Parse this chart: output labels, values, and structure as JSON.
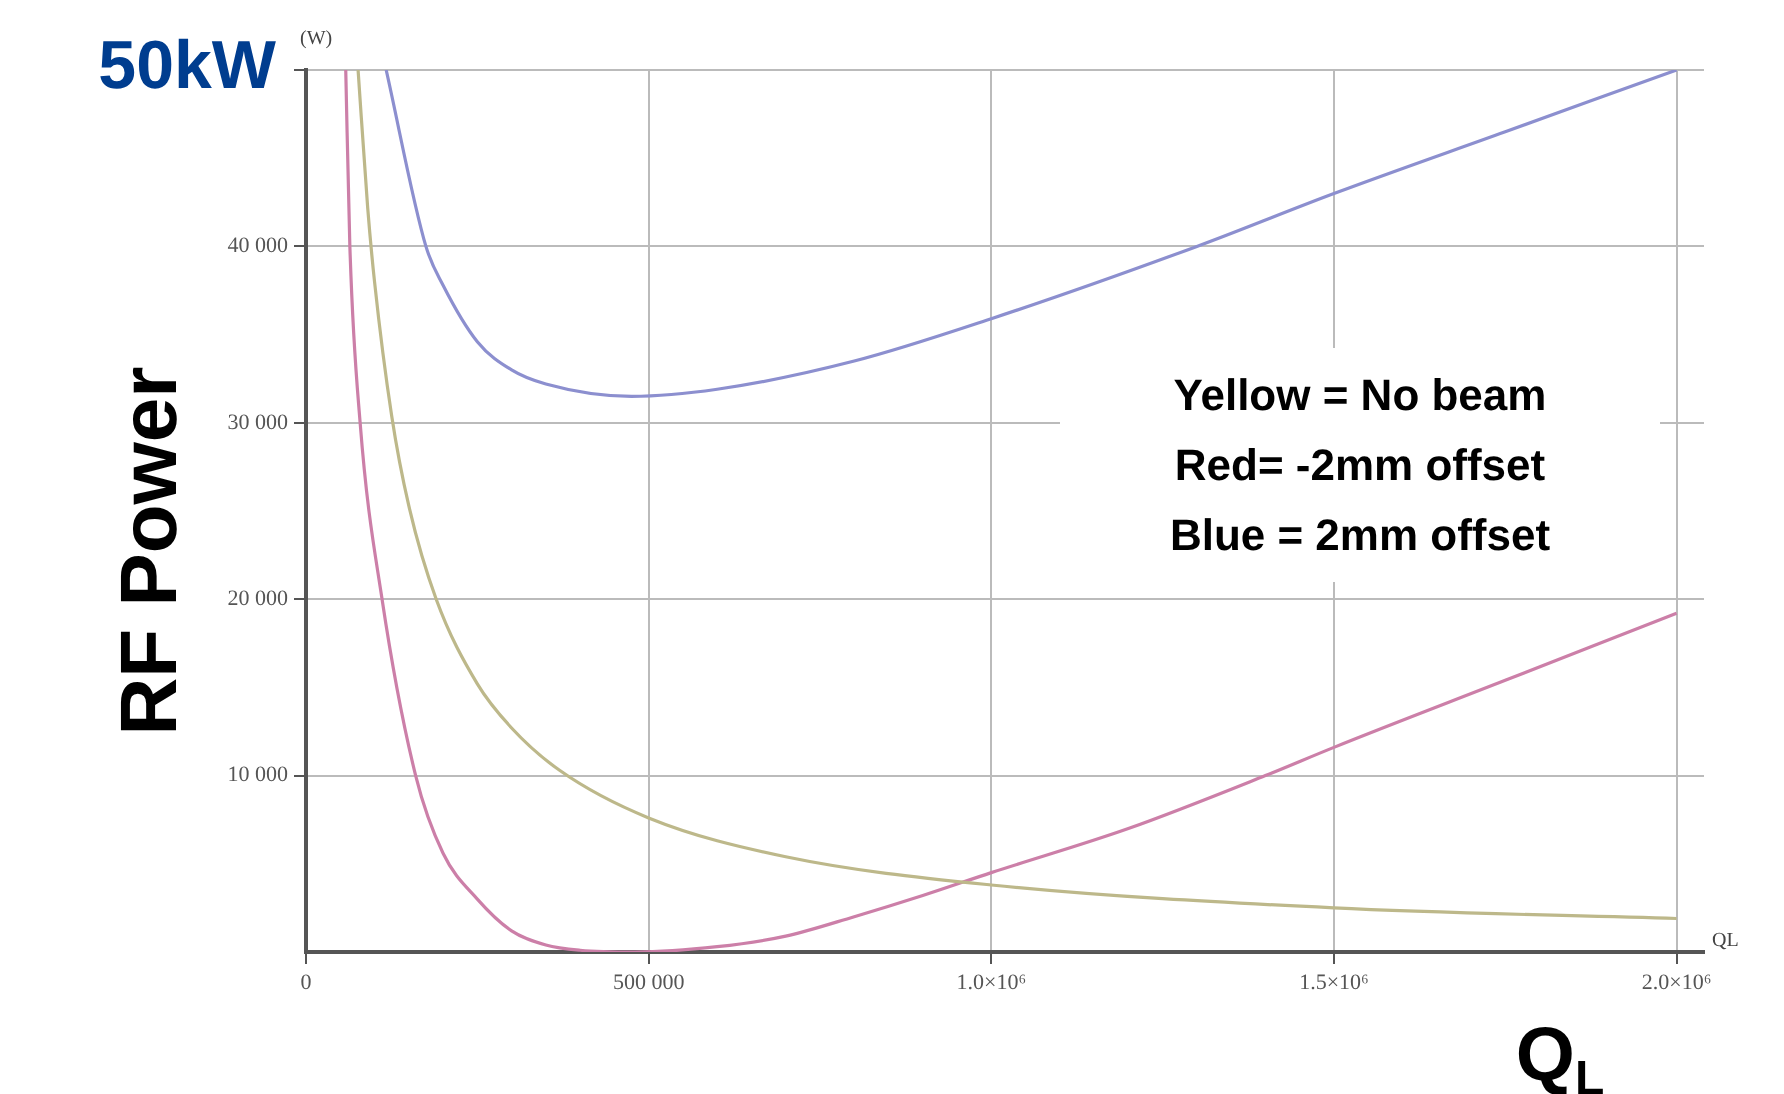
{
  "chart_data": {
    "type": "line",
    "ylabel": "RF Power",
    "xlabel": "Q$_{L}$",
    "annotations": [
      "50kW",
      "(W)",
      "QL",
      "Yellow = No beam",
      "Red= -2mm offset",
      "Blue = 2mm offset"
    ],
    "xlim": [
      0,
      2040000
    ],
    "ylim": [
      0,
      50000
    ],
    "xticks": [
      0,
      {
        "value": 500000,
        "label": "500 000"
      },
      {
        "value": 1000000,
        "label": "1.0×10⁶"
      },
      {
        "value": 1500000,
        "label": "1.5×10⁶"
      },
      {
        "value": 2000000,
        "label": "2.0×10⁶"
      }
    ],
    "yticks": [
      {
        "value": 10000,
        "label": "10 000"
      },
      {
        "value": 20000,
        "label": "20 000"
      },
      {
        "value": 30000,
        "label": "30 000"
      },
      {
        "value": 40000,
        "label": "40 000"
      },
      {
        "value": 50000,
        "label": null
      }
    ],
    "grid": true,
    "legend": false,
    "marker": "none",
    "line_style": "solid",
    "series": [
      {
        "color": "#bdb88a",
        "x": [
          76000,
          90000,
          100000,
          125000,
          150000,
          190000,
          250000,
          300000,
          370000,
          500000,
          700000,
          1000000,
          1500000,
          2000000
        ],
        "values": [
          50000,
          42200,
          38000,
          30400,
          25300,
          20000,
          15200,
          12700,
          10300,
          7600,
          5400,
          3800,
          2500,
          1900
        ]
      },
      {
        "color": "#cc7fa8",
        "x": [
          58000,
          64000,
          79000,
          111000,
          160000,
          200000,
          250000,
          300000,
          350000,
          400000,
          480000,
          600000,
          700000,
          800000,
          900000,
          1000000,
          1200000,
          1400000,
          1500000,
          1750000,
          2000000
        ],
        "values": [
          50000,
          40000,
          30000,
          20000,
          10000,
          5600,
          3000,
          1200,
          400,
          100,
          0,
          300,
          900,
          2000,
          3200,
          4500,
          7000,
          10000,
          11600,
          15400,
          19200
        ]
      },
      {
        "color": "#8c8fcf",
        "x": [
          117000,
          175000,
          200000,
          250000,
          300000,
          350000,
          475000,
          600000,
          800000,
          1000000,
          1300000,
          1500000,
          1750000,
          2000000
        ],
        "values": [
          50000,
          40000,
          37800,
          34600,
          33000,
          32200,
          31500,
          31900,
          33500,
          35900,
          40000,
          43000,
          46500,
          50000
        ]
      }
    ]
  }
}
